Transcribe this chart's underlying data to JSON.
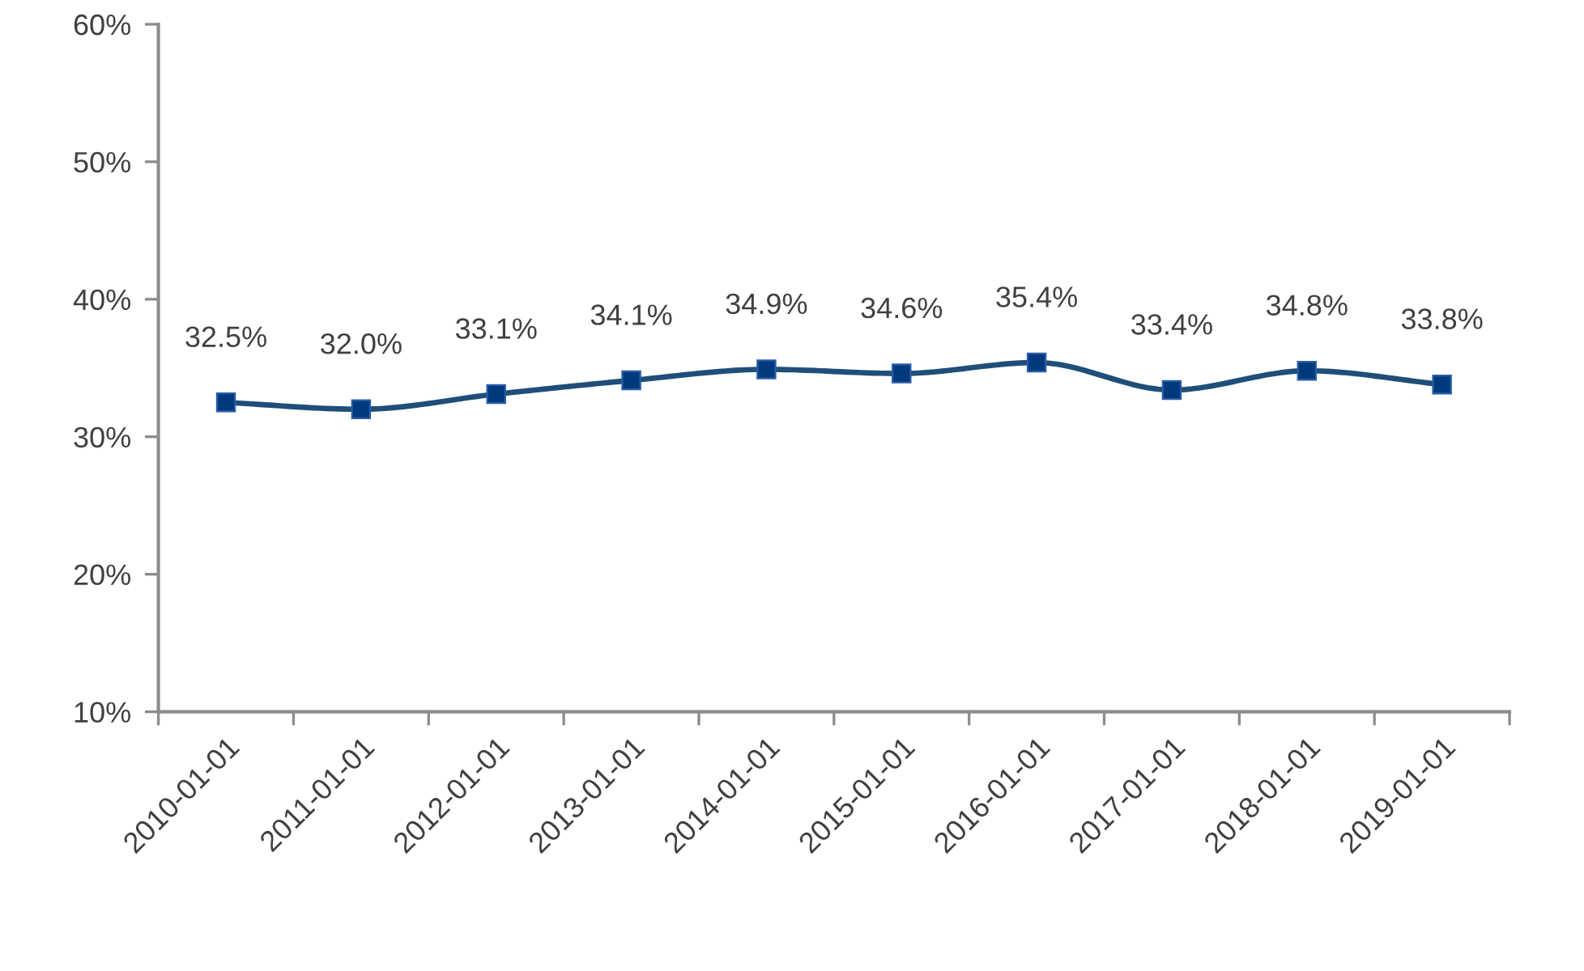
{
  "chart_data": {
    "type": "line",
    "categories": [
      "2010-01-01",
      "2011-01-01",
      "2012-01-01",
      "2013-01-01",
      "2014-01-01",
      "2015-01-01",
      "2016-01-01",
      "2017-01-01",
      "2018-01-01",
      "2019-01-01"
    ],
    "series": [
      {
        "color": "#1f4e79",
        "values": [
          32.5,
          32.0,
          33.1,
          34.1,
          34.9,
          34.6,
          35.4,
          33.4,
          34.8,
          33.8
        ],
        "value_labels": [
          "32.5%",
          "32.0%",
          "33.1%",
          "34.1%",
          "34.9%",
          "34.6%",
          "35.4%",
          "33.4%",
          "34.8%",
          "33.8%"
        ]
      }
    ],
    "ylim": [
      10,
      60
    ],
    "yticks": [
      {
        "value": 10,
        "label": "10%"
      },
      {
        "value": 20,
        "label": "20%"
      },
      {
        "value": 30,
        "label": "30%"
      },
      {
        "value": 40,
        "label": "40%"
      },
      {
        "value": 50,
        "label": "50%"
      },
      {
        "value": 60,
        "label": "60%"
      }
    ],
    "grid": false,
    "marker": "square",
    "line_style": "solid"
  }
}
